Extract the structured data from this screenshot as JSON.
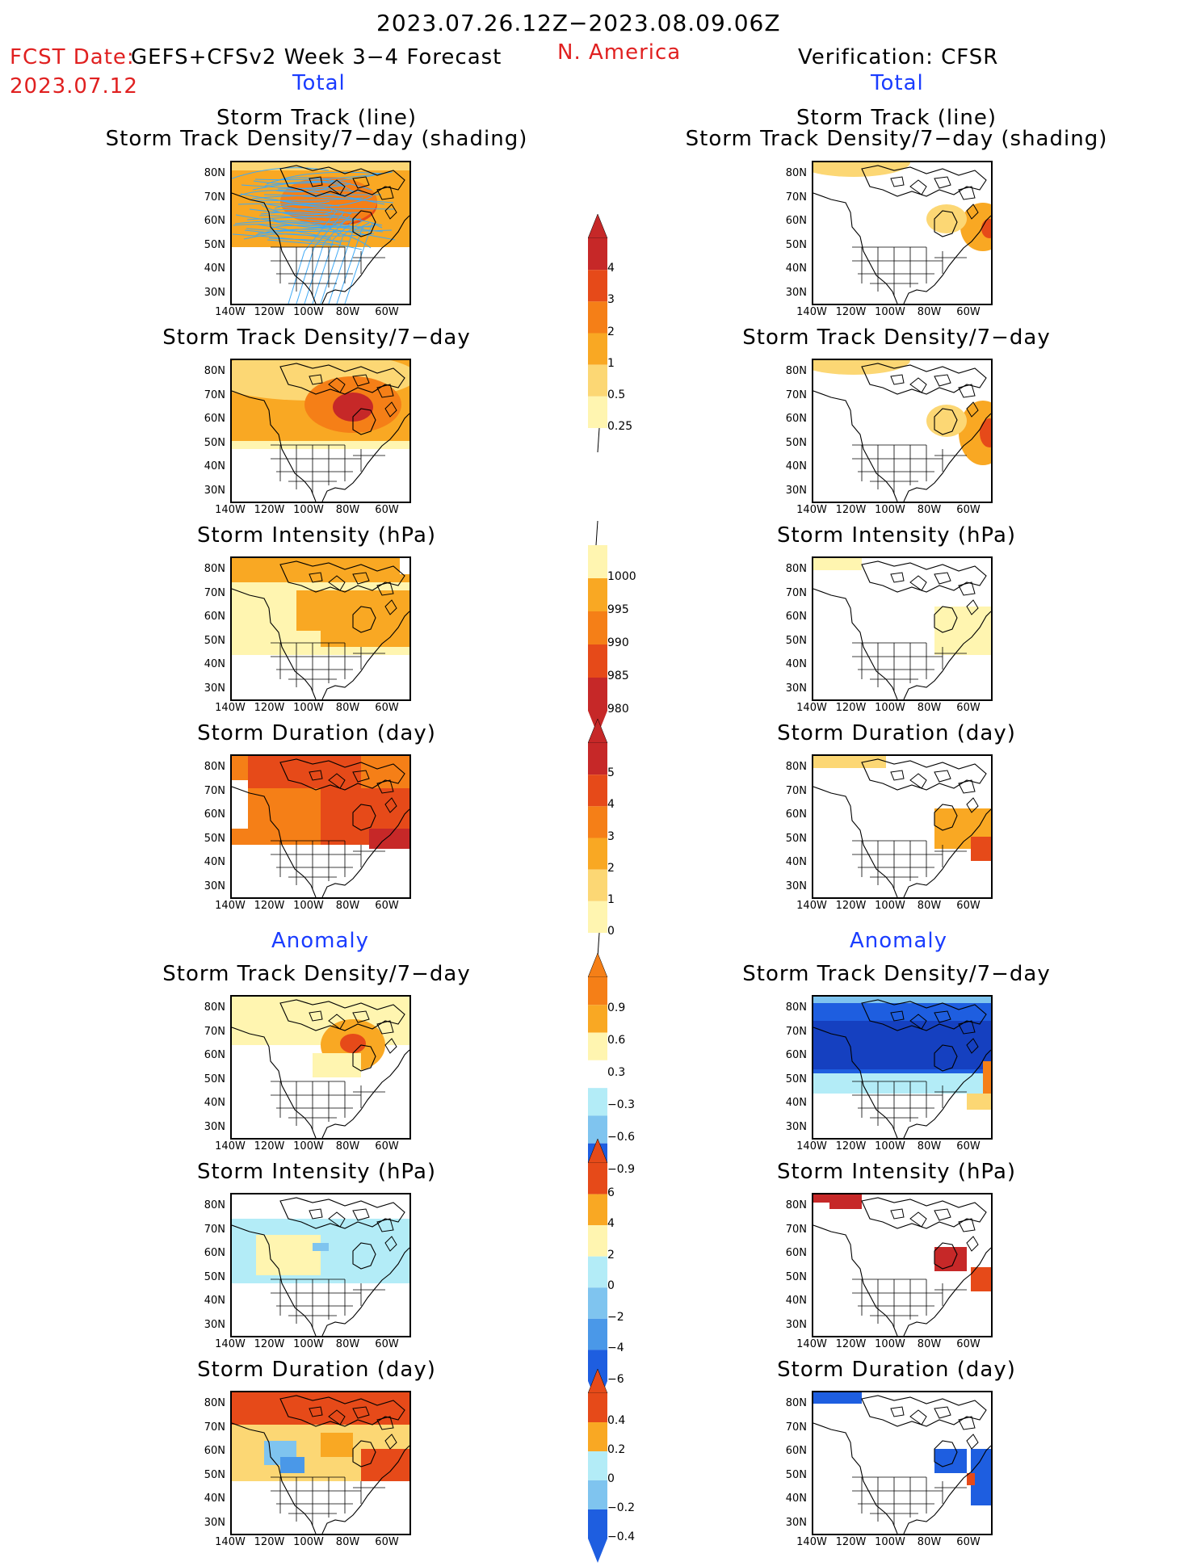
{
  "header": {
    "period": "2023.07.26.12Z−2023.08.09.06Z",
    "fcst_label": "FCST Date:",
    "fcst_model": "GEFS+CFSv2 Week 3−4 Forecast",
    "fcst_date": "2023.07.12",
    "region": "N. America",
    "verification": "Verification: CFSR",
    "total_left": "Total",
    "total_right": "Total",
    "anomaly_left": "Anomaly",
    "anomaly_right": "Anomaly"
  },
  "panels": {
    "track_line": "Storm Track (line)",
    "track_density_shading": "Storm Track Density/7−day (shading)",
    "track_density": "Storm Track Density/7−day",
    "intensity": "Storm Intensity (hPa)",
    "duration": "Storm Duration (day)"
  },
  "axes": {
    "lat": [
      "80N",
      "70N",
      "60N",
      "50N",
      "40N",
      "30N"
    ],
    "lon": [
      "140W",
      "120W",
      "100W",
      "80W",
      "60W"
    ]
  },
  "colorbars": {
    "density_total": [
      "4",
      "3",
      "2",
      "1",
      "0.5",
      "0.25"
    ],
    "intensity_total": [
      "1000",
      "995",
      "990",
      "985",
      "980"
    ],
    "duration_total": [
      "5",
      "4",
      "3",
      "2",
      "1",
      "0"
    ],
    "density_anom": [
      "0.9",
      "0.6",
      "0.3",
      "−0.3",
      "−0.6",
      "−0.9"
    ],
    "intensity_anom": [
      "6",
      "4",
      "2",
      "0",
      "−2",
      "−4",
      "−6"
    ],
    "duration_anom": [
      "0.4",
      "0.2",
      "0",
      "−0.2",
      "−0.4"
    ]
  },
  "colors": {
    "warm": [
      "#fff5b0",
      "#fcd774",
      "#f9a823",
      "#f57f17",
      "#e64a19",
      "#c62828",
      "#8b0000"
    ],
    "cool": [
      "#b3ecf7",
      "#7fc4ef",
      "#4a98e8",
      "#1e5ee0",
      "#1540c0"
    ],
    "track_line": "#3fa9f5"
  }
}
